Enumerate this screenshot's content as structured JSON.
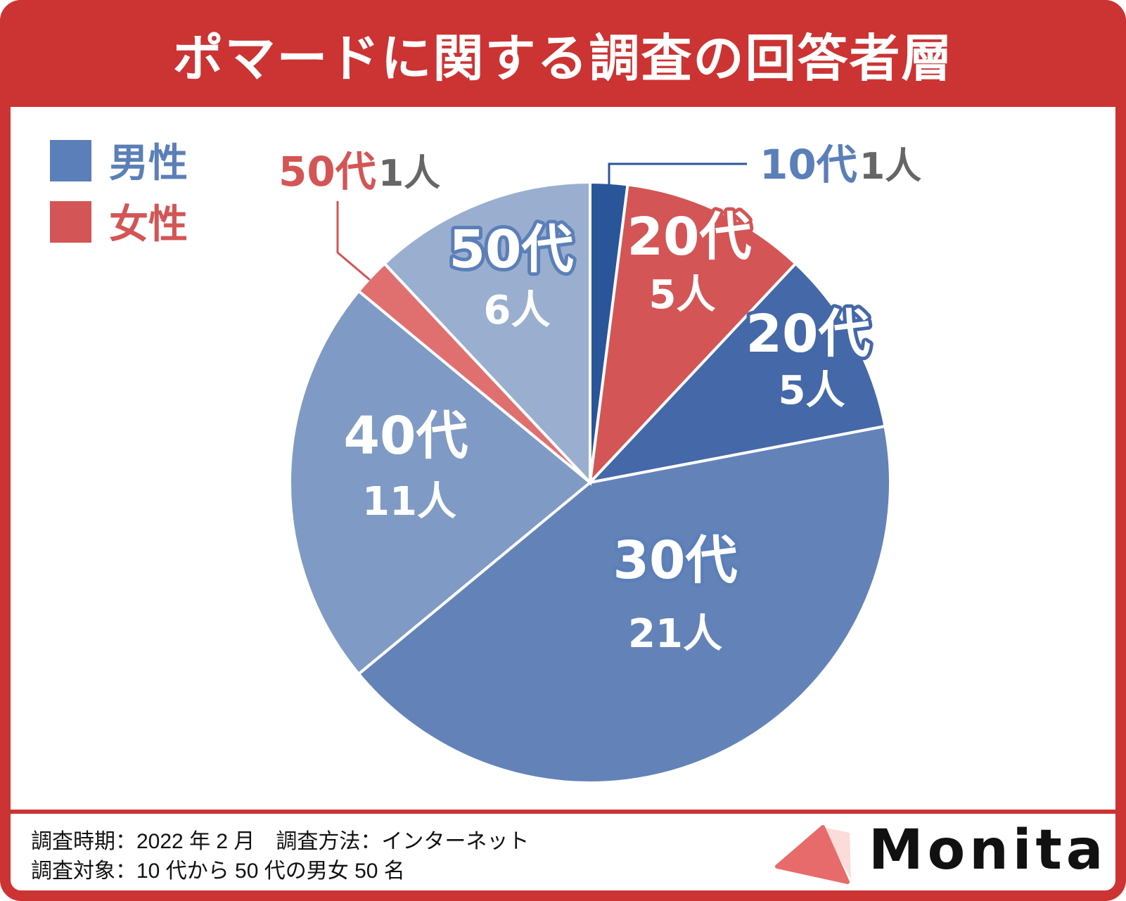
{
  "title": "ポマードに関する調査の回答者層",
  "chart_data": {
    "type": "pie",
    "title": "ポマードに関する調査の回答者層",
    "unit": "人",
    "legend": [
      {
        "label": "男性",
        "color": "#5b7fb8"
      },
      {
        "label": "女性",
        "color": "#d45555"
      }
    ],
    "legend_placement": "top-left",
    "slices": [
      {
        "label": "10代",
        "gender": "男性",
        "value": 1,
        "color": "#2a5599",
        "value_text": "1人",
        "external": true
      },
      {
        "label": "20代",
        "gender": "女性",
        "value": 5,
        "color": "#d45555",
        "value_text": "5人"
      },
      {
        "label": "20代",
        "gender": "男性",
        "value": 5,
        "color": "#4468a8",
        "value_text": "5人"
      },
      {
        "label": "30代",
        "gender": "男性",
        "value": 21,
        "color": "#6383b8",
        "value_text": "21人"
      },
      {
        "label": "40代",
        "gender": "男性",
        "value": 11,
        "color": "#7f9ac4",
        "value_text": "11人"
      },
      {
        "label": "50代",
        "gender": "女性",
        "value": 1,
        "color": "#e07070",
        "value_text": "1人",
        "external": true
      },
      {
        "label": "50代",
        "gender": "男性",
        "value": 6,
        "color": "#9aafcf",
        "value_text": "6人"
      }
    ]
  },
  "footer": {
    "line1": "調査時期：2022 年 2 月　調査方法：インターネット",
    "line2": "調査対象：10 代から 50 代の男女 50 名"
  },
  "logo": {
    "text": "Monita",
    "color": "#e86b6b"
  }
}
